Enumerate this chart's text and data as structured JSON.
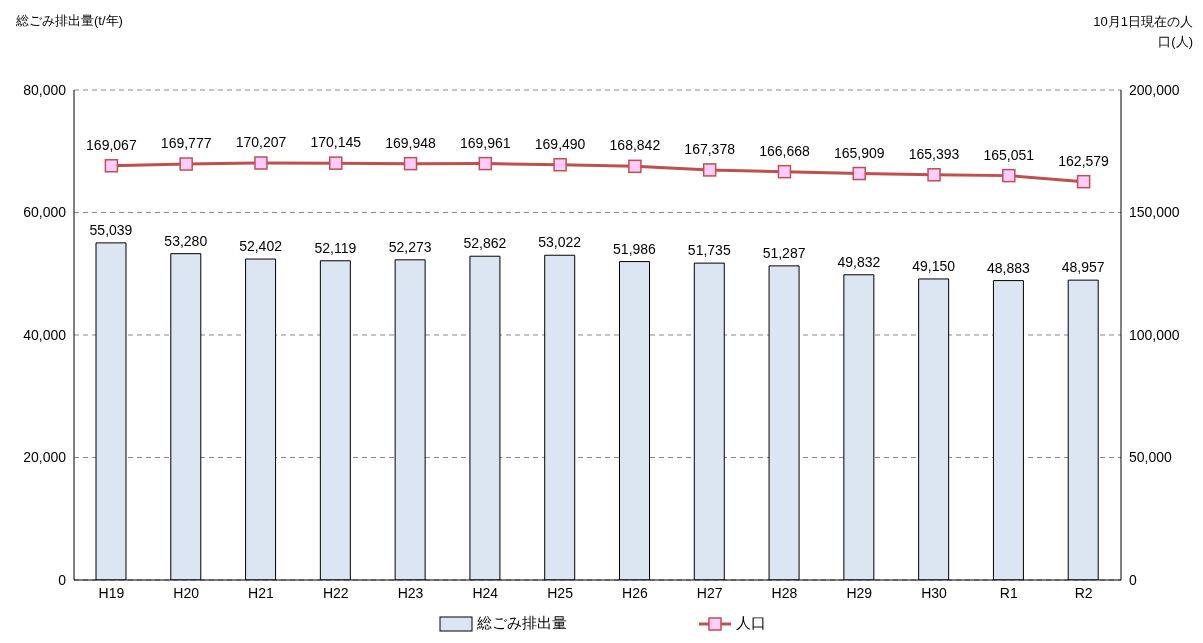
{
  "chart_data": {
    "type": "bar",
    "ylabel": "総ごみ排出量(t/年)",
    "y2label": "10月1日現在の人口(人)",
    "categories": [
      "H19",
      "H20",
      "H21",
      "H22",
      "H23",
      "H24",
      "H25",
      "H26",
      "H27",
      "H28",
      "H29",
      "H30",
      "R1",
      "R2"
    ],
    "series": [
      {
        "name": "総ごみ排出量",
        "color": "#dce6f2",
        "values": [
          55039,
          53280,
          52402,
          52119,
          52273,
          52862,
          53022,
          51986,
          51735,
          51287,
          49832,
          49150,
          48883,
          48957
        ],
        "value_labels": [
          "55,039",
          "53,280",
          "52,402",
          "52,119",
          "52,273",
          "52,862",
          "53,022",
          "51,986",
          "51,735",
          "51,287",
          "49,832",
          "49,150",
          "48,883",
          "48,957"
        ]
      },
      {
        "name": "人口",
        "type": "line",
        "axis": "y2",
        "color": "#c0504d",
        "marker": "square",
        "values": [
          169067,
          169777,
          170207,
          170145,
          169948,
          169961,
          169490,
          168842,
          167378,
          166668,
          165909,
          165393,
          165051,
          162579
        ],
        "value_labels": [
          "169,067",
          "169,777",
          "170,207",
          "170,145",
          "169,948",
          "169,961",
          "169,490",
          "168,842",
          "167,378",
          "166,668",
          "165,909",
          "165,393",
          "165,051",
          "162,579"
        ]
      }
    ],
    "ylim": [
      0,
      80000
    ],
    "yticks": [
      {
        "value": 0,
        "label": "0"
      },
      {
        "value": 20000,
        "label": "20,000"
      },
      {
        "value": 40000,
        "label": "40,000"
      },
      {
        "value": 60000,
        "label": "60,000"
      },
      {
        "value": 80000,
        "label": "80,000"
      }
    ],
    "y2lim": [
      0,
      200000
    ],
    "y2ticks": [
      {
        "value": 0,
        "label": "0"
      },
      {
        "value": 50000,
        "label": "50,000"
      },
      {
        "value": 100000,
        "label": "100,000"
      },
      {
        "value": 150000,
        "label": "150,000"
      },
      {
        "value": 200000,
        "label": "200,000"
      }
    ],
    "grid": "y",
    "line_style": "solid",
    "legend": "bottom"
  }
}
